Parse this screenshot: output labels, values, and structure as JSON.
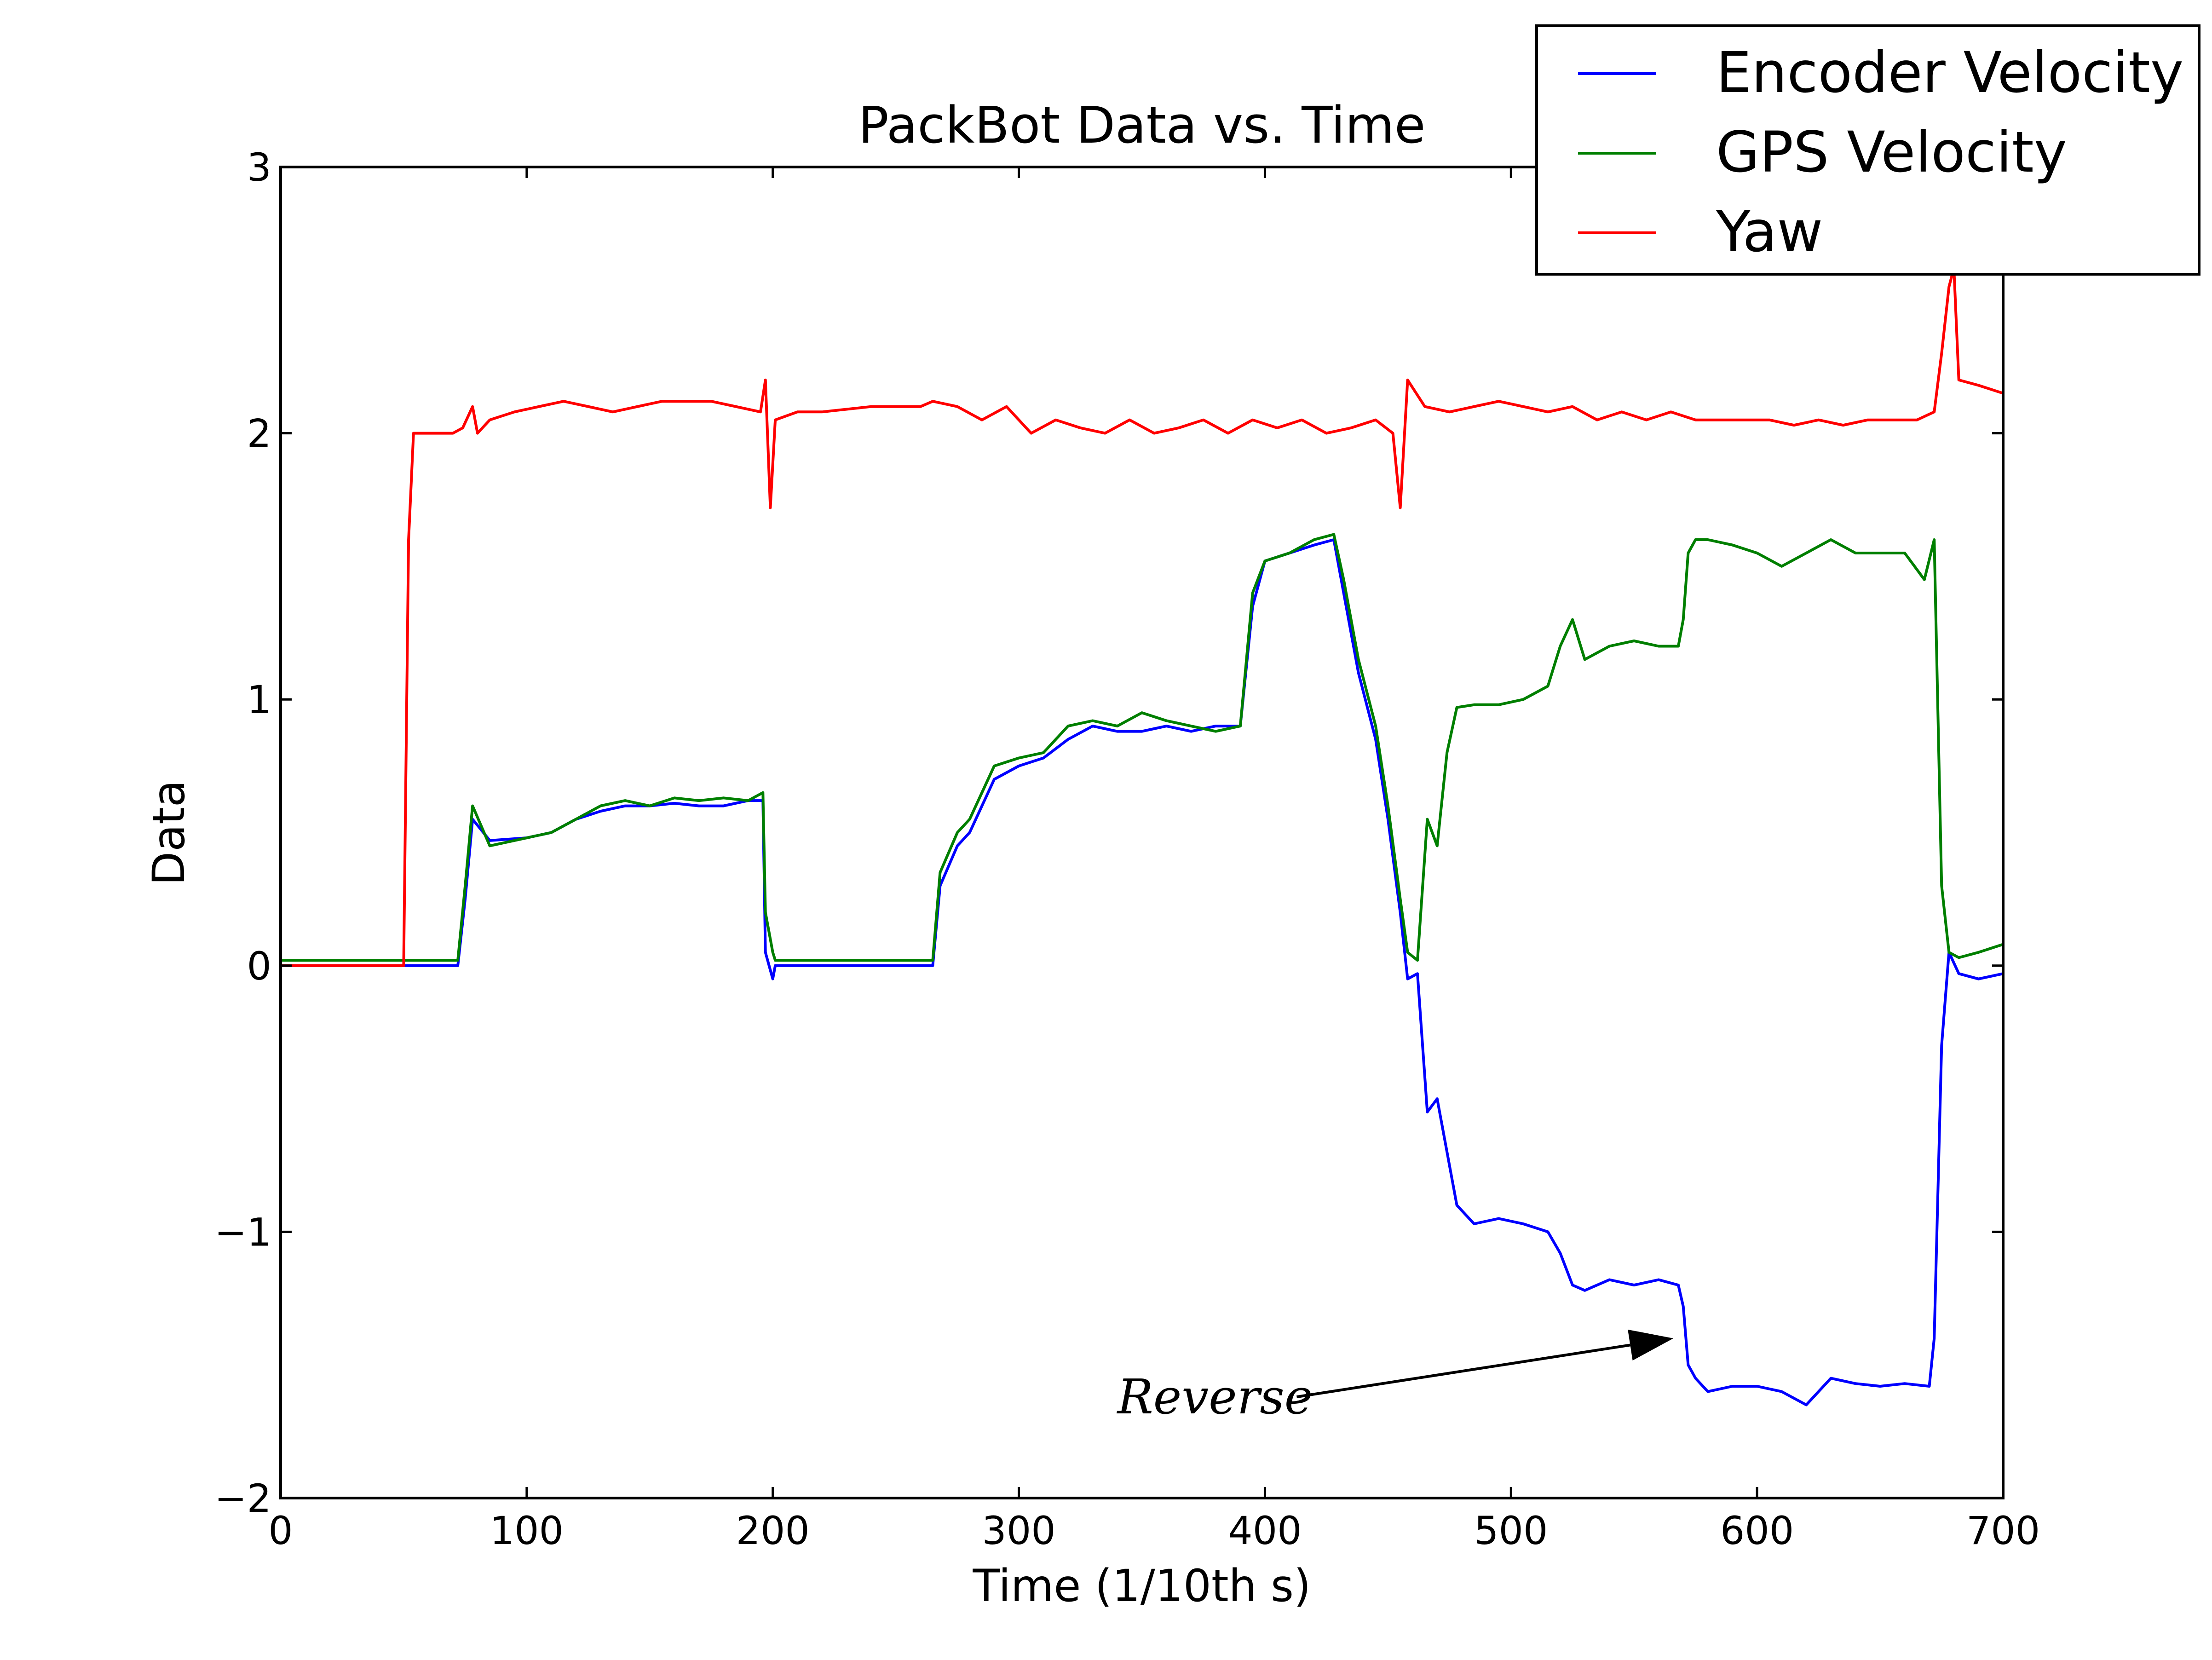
{
  "chart_data": {
    "type": "line",
    "title": "PackBot Data vs. Time",
    "xlabel": "Time (1/10th s)",
    "ylabel": "Data",
    "xlim": [
      0,
      700
    ],
    "ylim": [
      -2,
      3
    ],
    "xticks": [
      0,
      100,
      200,
      300,
      400,
      500,
      600,
      700
    ],
    "yticks": [
      -2,
      -1,
      0,
      1,
      2,
      3
    ],
    "ytick_labels": [
      "−2",
      "−1",
      "0",
      "1",
      "2",
      "3"
    ],
    "grid": false,
    "legend_position": "top-right",
    "annotation": {
      "text": "Reverse",
      "text_at": [
        340,
        -1.62
      ],
      "arrow_to": [
        566,
        -1.4
      ]
    },
    "series": [
      {
        "name": "Encoder Velocity",
        "color": "#0000ff",
        "points": [
          [
            0,
            0
          ],
          [
            72,
            0
          ],
          [
            75,
            0.25
          ],
          [
            78,
            0.55
          ],
          [
            85,
            0.47
          ],
          [
            100,
            0.48
          ],
          [
            110,
            0.5
          ],
          [
            120,
            0.55
          ],
          [
            130,
            0.58
          ],
          [
            140,
            0.6
          ],
          [
            150,
            0.6
          ],
          [
            160,
            0.61
          ],
          [
            170,
            0.6
          ],
          [
            180,
            0.6
          ],
          [
            190,
            0.62
          ],
          [
            196,
            0.62
          ],
          [
            197,
            0.05
          ],
          [
            200,
            -0.05
          ],
          [
            201,
            0
          ],
          [
            265,
            0
          ],
          [
            268,
            0.3
          ],
          [
            275,
            0.45
          ],
          [
            280,
            0.5
          ],
          [
            290,
            0.7
          ],
          [
            300,
            0.75
          ],
          [
            310,
            0.78
          ],
          [
            320,
            0.85
          ],
          [
            330,
            0.9
          ],
          [
            340,
            0.88
          ],
          [
            350,
            0.88
          ],
          [
            360,
            0.9
          ],
          [
            370,
            0.88
          ],
          [
            380,
            0.9
          ],
          [
            390,
            0.9
          ],
          [
            395,
            1.35
          ],
          [
            400,
            1.52
          ],
          [
            410,
            1.55
          ],
          [
            420,
            1.58
          ],
          [
            428,
            1.6
          ],
          [
            432,
            1.4
          ],
          [
            438,
            1.1
          ],
          [
            445,
            0.85
          ],
          [
            450,
            0.55
          ],
          [
            455,
            0.2
          ],
          [
            458,
            -0.05
          ],
          [
            462,
            -0.03
          ],
          [
            466,
            -0.55
          ],
          [
            470,
            -0.5
          ],
          [
            474,
            -0.7
          ],
          [
            478,
            -0.9
          ],
          [
            485,
            -0.97
          ],
          [
            495,
            -0.95
          ],
          [
            505,
            -0.97
          ],
          [
            515,
            -1.0
          ],
          [
            520,
            -1.08
          ],
          [
            525,
            -1.2
          ],
          [
            530,
            -1.22
          ],
          [
            540,
            -1.18
          ],
          [
            550,
            -1.2
          ],
          [
            560,
            -1.18
          ],
          [
            568,
            -1.2
          ],
          [
            570,
            -1.28
          ],
          [
            572,
            -1.5
          ],
          [
            575,
            -1.55
          ],
          [
            580,
            -1.6
          ],
          [
            590,
            -1.58
          ],
          [
            600,
            -1.58
          ],
          [
            610,
            -1.6
          ],
          [
            620,
            -1.65
          ],
          [
            630,
            -1.55
          ],
          [
            640,
            -1.57
          ],
          [
            650,
            -1.58
          ],
          [
            660,
            -1.57
          ],
          [
            670,
            -1.58
          ],
          [
            672,
            -1.4
          ],
          [
            675,
            -0.3
          ],
          [
            678,
            0.05
          ],
          [
            682,
            -0.03
          ],
          [
            690,
            -0.05
          ],
          [
            700,
            -0.03
          ]
        ]
      },
      {
        "name": "GPS Velocity",
        "color": "#007f00",
        "points": [
          [
            0,
            0.02
          ],
          [
            72,
            0.02
          ],
          [
            75,
            0.3
          ],
          [
            78,
            0.6
          ],
          [
            85,
            0.45
          ],
          [
            100,
            0.48
          ],
          [
            110,
            0.5
          ],
          [
            120,
            0.55
          ],
          [
            130,
            0.6
          ],
          [
            140,
            0.62
          ],
          [
            150,
            0.6
          ],
          [
            160,
            0.63
          ],
          [
            170,
            0.62
          ],
          [
            180,
            0.63
          ],
          [
            190,
            0.62
          ],
          [
            196,
            0.65
          ],
          [
            197,
            0.2
          ],
          [
            200,
            0.05
          ],
          [
            201,
            0.02
          ],
          [
            265,
            0.02
          ],
          [
            268,
            0.35
          ],
          [
            275,
            0.5
          ],
          [
            280,
            0.55
          ],
          [
            290,
            0.75
          ],
          [
            300,
            0.78
          ],
          [
            310,
            0.8
          ],
          [
            320,
            0.9
          ],
          [
            330,
            0.92
          ],
          [
            340,
            0.9
          ],
          [
            350,
            0.95
          ],
          [
            360,
            0.92
          ],
          [
            370,
            0.9
          ],
          [
            380,
            0.88
          ],
          [
            390,
            0.9
          ],
          [
            395,
            1.4
          ],
          [
            400,
            1.52
          ],
          [
            410,
            1.55
          ],
          [
            420,
            1.6
          ],
          [
            428,
            1.62
          ],
          [
            432,
            1.45
          ],
          [
            438,
            1.15
          ],
          [
            445,
            0.9
          ],
          [
            450,
            0.6
          ],
          [
            455,
            0.25
          ],
          [
            458,
            0.05
          ],
          [
            462,
            0.02
          ],
          [
            466,
            0.55
          ],
          [
            470,
            0.45
          ],
          [
            474,
            0.8
          ],
          [
            478,
            0.97
          ],
          [
            485,
            0.98
          ],
          [
            495,
            0.98
          ],
          [
            505,
            1.0
          ],
          [
            515,
            1.05
          ],
          [
            520,
            1.2
          ],
          [
            525,
            1.3
          ],
          [
            530,
            1.15
          ],
          [
            540,
            1.2
          ],
          [
            550,
            1.22
          ],
          [
            560,
            1.2
          ],
          [
            568,
            1.2
          ],
          [
            570,
            1.3
          ],
          [
            572,
            1.55
          ],
          [
            575,
            1.6
          ],
          [
            580,
            1.6
          ],
          [
            590,
            1.58
          ],
          [
            600,
            1.55
          ],
          [
            610,
            1.5
          ],
          [
            620,
            1.55
          ],
          [
            630,
            1.6
          ],
          [
            640,
            1.55
          ],
          [
            650,
            1.55
          ],
          [
            660,
            1.55
          ],
          [
            668,
            1.45
          ],
          [
            672,
            1.6
          ],
          [
            675,
            0.3
          ],
          [
            678,
            0.05
          ],
          [
            682,
            0.03
          ],
          [
            690,
            0.05
          ],
          [
            700,
            0.08
          ]
        ]
      },
      {
        "name": "Yaw",
        "color": "#ff0000",
        "points": [
          [
            0,
            0
          ],
          [
            50,
            0
          ],
          [
            52,
            1.6
          ],
          [
            54,
            2.0
          ],
          [
            70,
            2.0
          ],
          [
            74,
            2.02
          ],
          [
            78,
            2.1
          ],
          [
            80,
            2.0
          ],
          [
            85,
            2.05
          ],
          [
            95,
            2.08
          ],
          [
            105,
            2.1
          ],
          [
            115,
            2.12
          ],
          [
            125,
            2.1
          ],
          [
            135,
            2.08
          ],
          [
            145,
            2.1
          ],
          [
            155,
            2.12
          ],
          [
            165,
            2.12
          ],
          [
            175,
            2.12
          ],
          [
            185,
            2.1
          ],
          [
            195,
            2.08
          ],
          [
            197,
            2.2
          ],
          [
            199,
            1.72
          ],
          [
            201,
            2.05
          ],
          [
            210,
            2.08
          ],
          [
            220,
            2.08
          ],
          [
            240,
            2.1
          ],
          [
            260,
            2.1
          ],
          [
            265,
            2.12
          ],
          [
            275,
            2.1
          ],
          [
            285,
            2.05
          ],
          [
            295,
            2.1
          ],
          [
            305,
            2.0
          ],
          [
            315,
            2.05
          ],
          [
            325,
            2.02
          ],
          [
            335,
            2.0
          ],
          [
            345,
            2.05
          ],
          [
            355,
            2.0
          ],
          [
            365,
            2.02
          ],
          [
            375,
            2.05
          ],
          [
            385,
            2.0
          ],
          [
            395,
            2.05
          ],
          [
            405,
            2.02
          ],
          [
            415,
            2.05
          ],
          [
            425,
            2.0
          ],
          [
            435,
            2.02
          ],
          [
            445,
            2.05
          ],
          [
            452,
            2.0
          ],
          [
            455,
            1.72
          ],
          [
            458,
            2.2
          ],
          [
            465,
            2.1
          ],
          [
            475,
            2.08
          ],
          [
            485,
            2.1
          ],
          [
            495,
            2.12
          ],
          [
            505,
            2.1
          ],
          [
            515,
            2.08
          ],
          [
            525,
            2.1
          ],
          [
            535,
            2.05
          ],
          [
            545,
            2.08
          ],
          [
            555,
            2.05
          ],
          [
            565,
            2.08
          ],
          [
            575,
            2.05
          ],
          [
            585,
            2.05
          ],
          [
            595,
            2.05
          ],
          [
            605,
            2.05
          ],
          [
            615,
            2.03
          ],
          [
            625,
            2.05
          ],
          [
            635,
            2.03
          ],
          [
            645,
            2.05
          ],
          [
            655,
            2.05
          ],
          [
            665,
            2.05
          ],
          [
            672,
            2.08
          ],
          [
            675,
            2.3
          ],
          [
            678,
            2.55
          ],
          [
            680,
            2.62
          ],
          [
            682,
            2.2
          ],
          [
            690,
            2.18
          ],
          [
            700,
            2.15
          ]
        ]
      }
    ]
  }
}
